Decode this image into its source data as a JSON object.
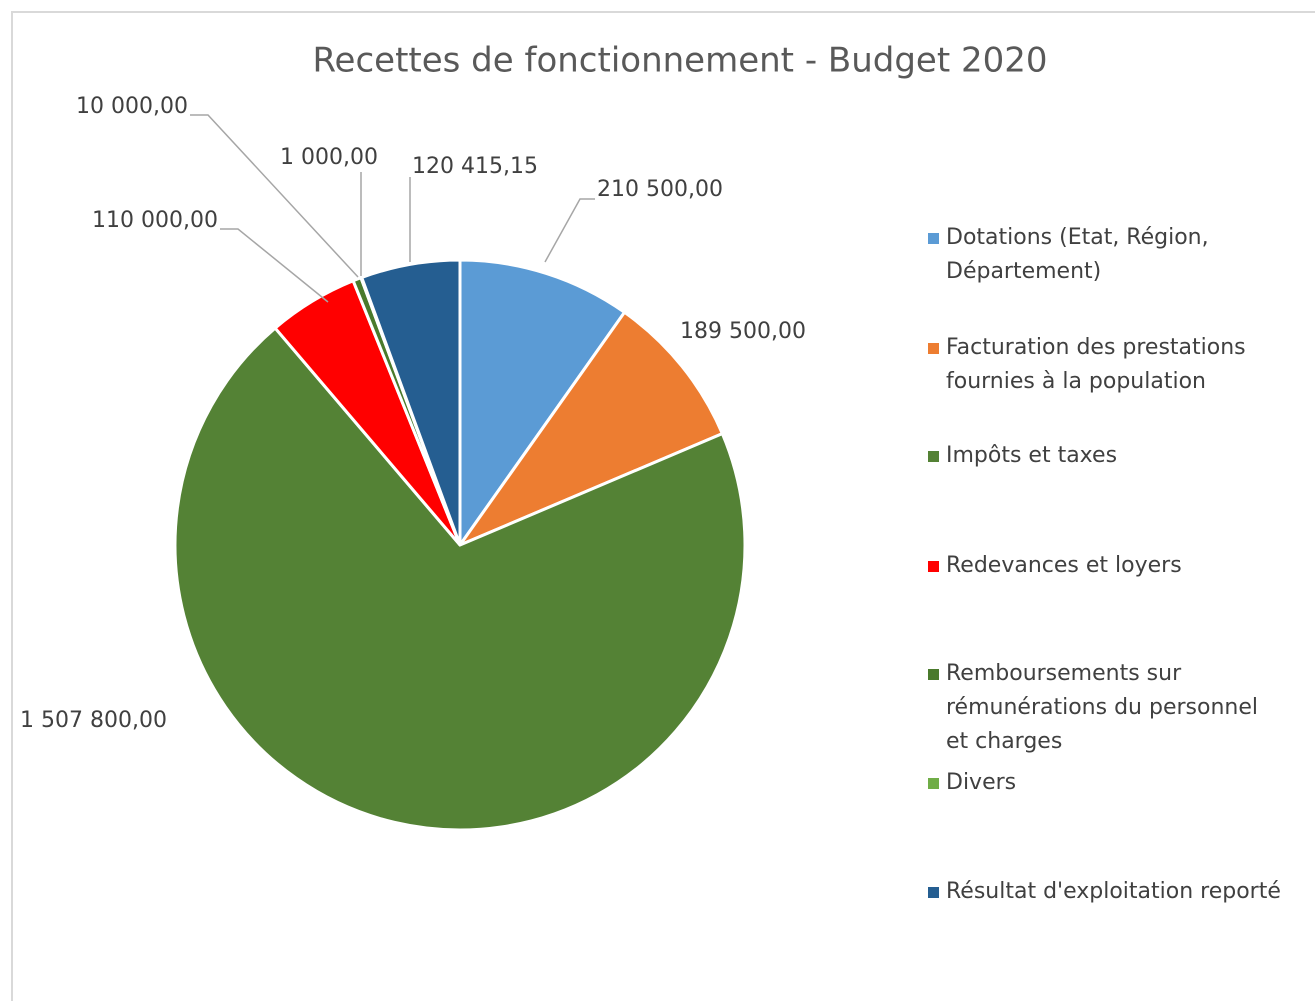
{
  "chart_data": {
    "type": "pie",
    "title": "Recettes de fonctionnement - Budget 2020",
    "categories": [
      "Dotations (Etat, Région, Département)",
      "Facturation des prestations fournies à la population",
      "Impôts et taxes",
      "Redevances et loyers",
      "Remboursements sur rémunérations du personnel et charges",
      "Divers",
      "Résultat d'exploitation reporté"
    ],
    "values": [
      210500,
      189500,
      1507800,
      110000,
      10000,
      1000,
      120415.15
    ],
    "value_labels": [
      "210 500,00",
      "189 500,00",
      "1 507 800,00",
      "110 000,00",
      "10 000,00",
      "1 000,00",
      "120 415,15"
    ],
    "colors": [
      "#5b9bd5",
      "#ed7d31",
      "#548235",
      "#ff0000",
      "#4a7a2c",
      "#70ad47",
      "#255e91"
    ],
    "legend": "right"
  }
}
